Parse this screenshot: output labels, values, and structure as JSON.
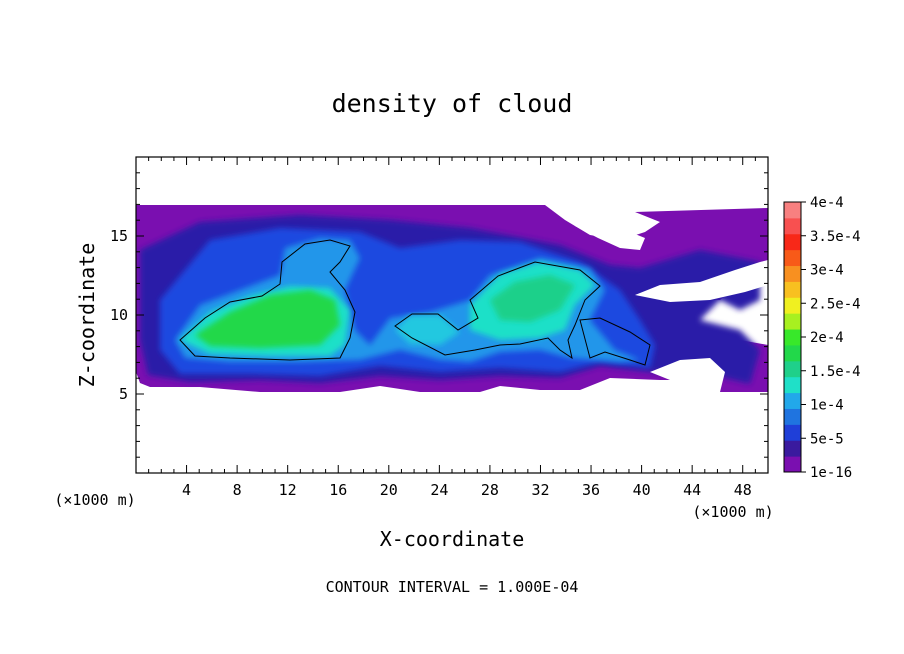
{
  "chart_data": {
    "type": "heatmap",
    "title": "density of cloud",
    "xlabel": "X-coordinate",
    "ylabel": "Z-coordinate",
    "x_unit_left": "(×1000 m)",
    "x_unit_right": "(×1000 m)",
    "xlim": [
      0,
      50
    ],
    "ylim": [
      0,
      20
    ],
    "x_ticks": [
      "4",
      "8",
      "12",
      "16",
      "20",
      "24",
      "28",
      "32",
      "36",
      "40",
      "44",
      "48"
    ],
    "y_ticks": [
      "5",
      "10",
      "15"
    ],
    "colorbar": {
      "labels": [
        "1e-16",
        "5e-5",
        "1e-4",
        "1.5e-4",
        "2e-4",
        "2.5e-4",
        "3e-4",
        "3.5e-4",
        "4e-4"
      ],
      "colors": [
        "#7a0fb0",
        "#3a1a9e",
        "#1f3fd8",
        "#1f74e0",
        "#22a8ea",
        "#1fe0c8",
        "#1fd08a",
        "#22d84a",
        "#38e82a",
        "#a8f020",
        "#f0f020",
        "#f8c020",
        "#f89020",
        "#f85a18",
        "#f82818",
        "#f85050",
        "#f88080"
      ]
    },
    "footer": "CONTOUR INTERVAL = 1.000E-04",
    "cloud_regions": [
      {
        "name": "main-layer",
        "x": [
          0,
          50
        ],
        "z": [
          5.2,
          17.0
        ],
        "level": 1e-05
      },
      {
        "name": "left-core",
        "x": [
          3,
          17
        ],
        "z": [
          7,
          12
        ],
        "level": 0.00018
      },
      {
        "name": "right-core",
        "x": [
          20,
          37
        ],
        "z": [
          7,
          13.5
        ],
        "level": 0.00015
      }
    ]
  }
}
